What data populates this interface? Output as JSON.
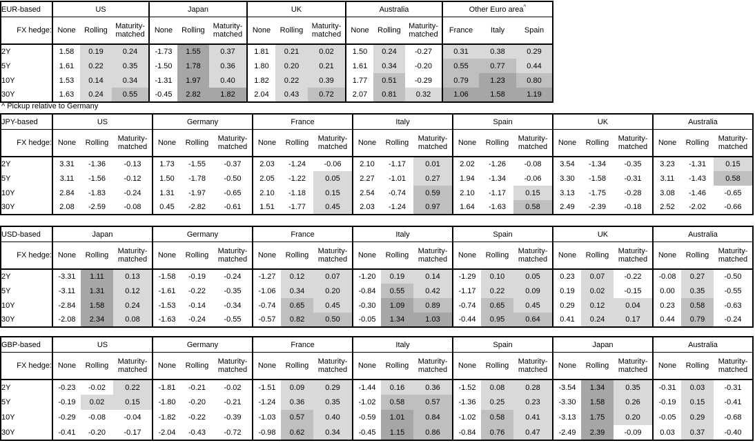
{
  "colors": {
    "background": "#ffffff",
    "border": "#000000",
    "text": "#000000",
    "shade_light": "#d9d9d9",
    "shade_medium": "#bfbfbf",
    "shade_dark": "#a6a6a6"
  },
  "footnote": "^ Pickup relative to Germany",
  "labels": {
    "fx_hedge": "FX hedge:",
    "tenors": [
      "2Y",
      "5Y",
      "10Y",
      "30Y"
    ],
    "hedge_columns": [
      "None",
      "Rolling",
      "Maturity-matched"
    ]
  },
  "tables": [
    {
      "base": "EUR-based",
      "groups": [
        {
          "title": "US",
          "rows": [
            [
              "1.58",
              "0.19",
              "0.24"
            ],
            [
              "1.61",
              "0.22",
              "0.35"
            ],
            [
              "1.53",
              "0.14",
              "0.34"
            ],
            [
              "1.63",
              "0.24",
              "0.55"
            ]
          ]
        },
        {
          "title": "Japan",
          "rows": [
            [
              "-1.73",
              "1.55",
              "0.37"
            ],
            [
              "-1.50",
              "1.78",
              "0.36"
            ],
            [
              "-1.31",
              "1.97",
              "0.40"
            ],
            [
              "-0.45",
              "2.82",
              "1.82"
            ]
          ]
        },
        {
          "title": "UK",
          "rows": [
            [
              "1.81",
              "0.21",
              "0.02"
            ],
            [
              "1.80",
              "0.20",
              "0.21"
            ],
            [
              "1.82",
              "0.22",
              "0.39"
            ],
            [
              "2.04",
              "0.43",
              "0.72"
            ]
          ]
        },
        {
          "title": "Australia",
          "rows": [
            [
              "1.50",
              "0.24",
              "-0.27"
            ],
            [
              "1.61",
              "0.34",
              "-0.20"
            ],
            [
              "1.77",
              "0.51",
              "-0.29"
            ],
            [
              "2.07",
              "0.81",
              "0.32"
            ]
          ]
        },
        {
          "title": "Other Euro area",
          "sup": "^",
          "shade_all": true,
          "headers": [
            "France",
            "Italy",
            "Spain"
          ],
          "rows": [
            [
              "0.31",
              "0.38",
              "0.29"
            ],
            [
              "0.55",
              "0.77",
              "0.44"
            ],
            [
              "0.79",
              "1.23",
              "0.80"
            ],
            [
              "1.06",
              "1.58",
              "1.19"
            ]
          ]
        }
      ]
    },
    {
      "base": "JPY-based",
      "groups": [
        {
          "title": "US",
          "rows": [
            [
              "3.31",
              "-1.36",
              "-0.13"
            ],
            [
              "3.11",
              "-1.56",
              "-0.12"
            ],
            [
              "2.84",
              "-1.83",
              "-0.24"
            ],
            [
              "2.08",
              "-2.59",
              "-0.08"
            ]
          ]
        },
        {
          "title": "Germany",
          "rows": [
            [
              "1.73",
              "-1.55",
              "-0.37"
            ],
            [
              "1.50",
              "-1.78",
              "-0.50"
            ],
            [
              "1.31",
              "-1.97",
              "-0.65"
            ],
            [
              "0.45",
              "-2.82",
              "-0.61"
            ]
          ]
        },
        {
          "title": "France",
          "rows": [
            [
              "2.03",
              "-1.24",
              "-0.06"
            ],
            [
              "2.05",
              "-1.22",
              "0.05"
            ],
            [
              "2.10",
              "-1.18",
              "0.15"
            ],
            [
              "1.51",
              "-1.77",
              "0.45"
            ]
          ]
        },
        {
          "title": "Italy",
          "rows": [
            [
              "2.10",
              "-1.17",
              "0.01"
            ],
            [
              "2.27",
              "-1.01",
              "0.27"
            ],
            [
              "2.54",
              "-0.74",
              "0.59"
            ],
            [
              "2.03",
              "-1.24",
              "0.97"
            ]
          ]
        },
        {
          "title": "Spain",
          "rows": [
            [
              "2.02",
              "-1.26",
              "-0.08"
            ],
            [
              "1.94",
              "-1.34",
              "-0.06"
            ],
            [
              "2.10",
              "-1.17",
              "0.15"
            ],
            [
              "1.64",
              "-1.63",
              "0.58"
            ]
          ]
        },
        {
          "title": "UK",
          "rows": [
            [
              "3.54",
              "-1.34",
              "-0.35"
            ],
            [
              "3.30",
              "-1.58",
              "-0.31"
            ],
            [
              "3.13",
              "-1.75",
              "-0.28"
            ],
            [
              "2.49",
              "-2.39",
              "-0.18"
            ]
          ]
        },
        {
          "title": "Australia",
          "rows": [
            [
              "3.23",
              "-1.31",
              "0.15"
            ],
            [
              "3.11",
              "-1.43",
              "0.58"
            ],
            [
              "3.08",
              "-1.46",
              "-0.65"
            ],
            [
              "2.52",
              "-2.02",
              "-0.66"
            ]
          ]
        }
      ]
    },
    {
      "base": "USD-based",
      "groups": [
        {
          "title": "Japan",
          "rows": [
            [
              "-3.31",
              "1.11",
              "0.13"
            ],
            [
              "-3.11",
              "1.31",
              "0.12"
            ],
            [
              "-2.84",
              "1.58",
              "0.24"
            ],
            [
              "-2.08",
              "2.34",
              "0.08"
            ]
          ]
        },
        {
          "title": "Germany",
          "rows": [
            [
              "-1.58",
              "-0.19",
              "-0.24"
            ],
            [
              "-1.61",
              "-0.22",
              "-0.35"
            ],
            [
              "-1.53",
              "-0.14",
              "-0.34"
            ],
            [
              "-1.63",
              "-0.24",
              "-0.55"
            ]
          ]
        },
        {
          "title": "France",
          "rows": [
            [
              "-1.27",
              "0.12",
              "0.07"
            ],
            [
              "-1.06",
              "0.34",
              "0.20"
            ],
            [
              "-0.74",
              "0.65",
              "0.45"
            ],
            [
              "-0.57",
              "0.82",
              "0.50"
            ]
          ]
        },
        {
          "title": "Italy",
          "rows": [
            [
              "-1.20",
              "0.19",
              "0.14"
            ],
            [
              "-0.84",
              "0.55",
              "0.42"
            ],
            [
              "-0.30",
              "1.09",
              "0.89"
            ],
            [
              "-0.05",
              "1.34",
              "1.03"
            ]
          ]
        },
        {
          "title": "Spain",
          "rows": [
            [
              "-1.29",
              "0.10",
              "0.05"
            ],
            [
              "-1.17",
              "0.22",
              "0.09"
            ],
            [
              "-0.74",
              "0.65",
              "0.45"
            ],
            [
              "-0.44",
              "0.95",
              "0.64"
            ]
          ]
        },
        {
          "title": "UK",
          "rows": [
            [
              "0.23",
              "0.07",
              "-0.22"
            ],
            [
              "0.19",
              "0.02",
              "-0.15"
            ],
            [
              "0.29",
              "0.12",
              "0.04"
            ],
            [
              "0.41",
              "0.24",
              "0.17"
            ]
          ]
        },
        {
          "title": "Australia",
          "rows": [
            [
              "-0.08",
              "0.27",
              "-0.50"
            ],
            [
              "0.00",
              "0.35",
              "-0.55"
            ],
            [
              "0.23",
              "0.58",
              "-0.63"
            ],
            [
              "0.44",
              "0.79",
              "-0.24"
            ]
          ]
        }
      ]
    },
    {
      "base": "GBP-based",
      "groups": [
        {
          "title": "US",
          "rows": [
            [
              "-0.23",
              "-0.02",
              "0.22"
            ],
            [
              "-0.19",
              "0.02",
              "0.15"
            ],
            [
              "-0.29",
              "-0.08",
              "-0.04"
            ],
            [
              "-0.41",
              "-0.20",
              "-0.17"
            ]
          ]
        },
        {
          "title": "Germany",
          "rows": [
            [
              "-1.81",
              "-0.21",
              "-0.02"
            ],
            [
              "-1.80",
              "-0.20",
              "-0.21"
            ],
            [
              "-1.82",
              "-0.22",
              "-0.39"
            ],
            [
              "-2.04",
              "-0.43",
              "-0.72"
            ]
          ]
        },
        {
          "title": "France",
          "rows": [
            [
              "-1.51",
              "0.09",
              "0.29"
            ],
            [
              "-1.24",
              "0.36",
              "0.35"
            ],
            [
              "-1.03",
              "0.57",
              "0.40"
            ],
            [
              "-0.98",
              "0.62",
              "0.34"
            ]
          ]
        },
        {
          "title": "Italy",
          "rows": [
            [
              "-1.44",
              "0.16",
              "0.36"
            ],
            [
              "-1.02",
              "0.58",
              "0.57"
            ],
            [
              "-0.59",
              "1.01",
              "0.84"
            ],
            [
              "-0.45",
              "1.15",
              "0.86"
            ]
          ]
        },
        {
          "title": "Spain",
          "rows": [
            [
              "-1.52",
              "0.08",
              "0.28"
            ],
            [
              "-1.36",
              "0.25",
              "0.23"
            ],
            [
              "-1.02",
              "0.58",
              "0.41"
            ],
            [
              "-0.84",
              "0.76",
              "0.47"
            ]
          ]
        },
        {
          "title": "Japan",
          "rows": [
            [
              "-3.54",
              "1.34",
              "0.35"
            ],
            [
              "-3.30",
              "1.58",
              "0.26"
            ],
            [
              "-3.13",
              "1.75",
              "0.20"
            ],
            [
              "-2.49",
              "2.39",
              "-0.09"
            ]
          ]
        },
        {
          "title": "Australia",
          "rows": [
            [
              "-0.31",
              "0.03",
              "-0.31"
            ],
            [
              "-0.19",
              "0.15",
              "-0.41"
            ],
            [
              "-0.05",
              "0.29",
              "-0.68"
            ],
            [
              "0.03",
              "0.37",
              "-0.40"
            ]
          ]
        }
      ]
    }
  ]
}
